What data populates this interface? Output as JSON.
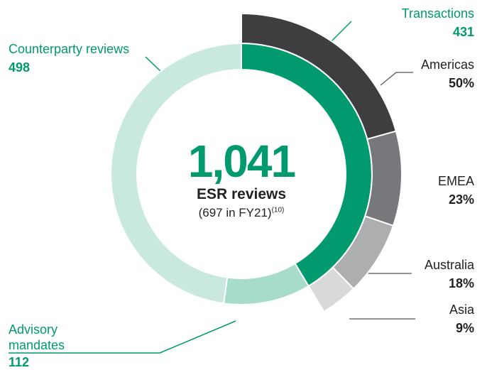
{
  "chart_data": {
    "type": "donut",
    "center_title": "1,041",
    "center_subtitle": "ESR reviews",
    "center_note": "(697 in FY21)",
    "center_note_ref": "(10)",
    "categories": [
      "Transactions",
      "Advisory mandates",
      "Counterparty reviews"
    ],
    "values": [
      431,
      112,
      498
    ],
    "colors": [
      "#009a6e",
      "#a6dcc8",
      "#c8e8e0"
    ],
    "breakdown": {
      "categories": [
        "Americas",
        "EMEA",
        "Australia",
        "Asia"
      ],
      "values": [
        50,
        23,
        18,
        9
      ],
      "value_labels": [
        "50%",
        "23%",
        "18%",
        "9%"
      ],
      "colors": [
        "#3e3e40",
        "#77787b",
        "#adaeb0",
        "#d9d9da"
      ]
    }
  }
}
